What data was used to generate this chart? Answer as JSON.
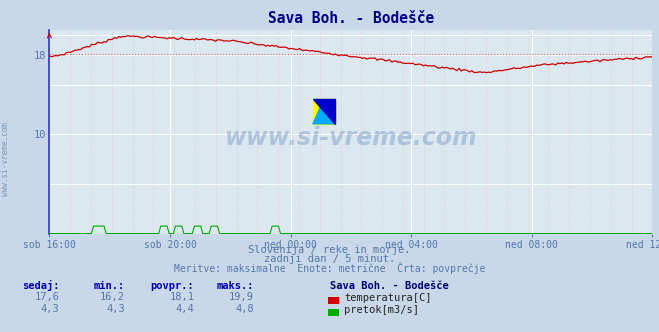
{
  "title": "Sava Boh. - Bodešče",
  "bg_color": "#c8d8e8",
  "plot_bg_color": "#dce8f0",
  "grid_white": "#ffffff",
  "grid_pink": "#e8b0b0",
  "xlabel_ticks": [
    "sob 16:00",
    "sob 20:00",
    "ned 00:00",
    "ned 04:00",
    "ned 08:00",
    "ned 12:00"
  ],
  "ylim": [
    0,
    20.5
  ],
  "watermark": "www.si-vreme.com",
  "subtitle1": "Slovenija / reke in morje.",
  "subtitle2": "zadnji dan / 5 minut.",
  "subtitle3": "Meritve: maksimalne  Enote: metrične  Črta: povprečje",
  "legend_title": "Sava Boh. - Bodešče",
  "legend_items": [
    {
      "label": "temperatura[C]",
      "color": "#cc0000"
    },
    {
      "label": "pretok[m3/s]",
      "color": "#00aa00"
    }
  ],
  "table_headers": [
    "sedaj:",
    "min.:",
    "povpr.:",
    "maks.:"
  ],
  "table_rows": [
    [
      "17,6",
      "16,2",
      "18,1",
      "19,9"
    ],
    [
      "4,3",
      "4,3",
      "4,4",
      "4,8"
    ]
  ],
  "temp_color": "#cc0000",
  "flow_color": "#00aa00",
  "avg_line_color": "#dd6666",
  "avg_value": 18.1,
  "n_points": 288,
  "temp_min": 16.2,
  "temp_max": 19.9,
  "flow_max_display": 0.8,
  "title_color": "#00008b",
  "text_color": "#5577aa",
  "tick_color": "#5577aa",
  "axis_color_left": "#4444cc",
  "axis_color_bottom": "#cc0000",
  "yaxis_line_color": "#3333bb",
  "ytick_labels": [
    "10",
    "18"
  ],
  "ytick_vals": [
    10,
    18
  ]
}
